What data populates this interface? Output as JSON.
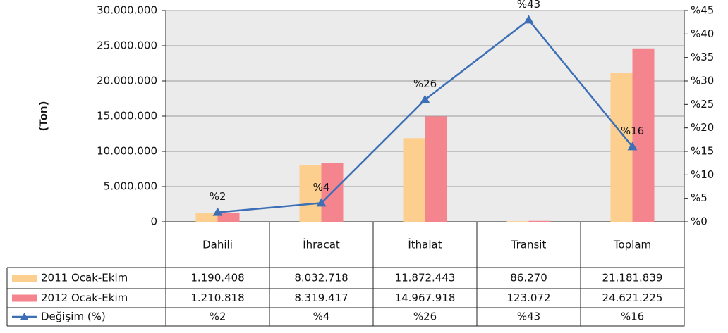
{
  "chart_data": {
    "type": "bar",
    "y_label": "(Ton)",
    "categories": [
      "Dahili",
      "İhracat",
      "İthalat",
      "Transit",
      "Toplam"
    ],
    "series": [
      {
        "name": "2011 Ocak-Ekim",
        "color": "#fccf8e",
        "values": [
          1190408,
          8032718,
          11872443,
          86270,
          21181839
        ],
        "value_labels": [
          "1.190.408",
          "8.032.718",
          "11.872.443",
          "86.270",
          "21.181.839"
        ]
      },
      {
        "name": "2012 Ocak-Ekim",
        "color": "#f4858f",
        "values": [
          1210818,
          8319417,
          14967918,
          123072,
          24621225
        ],
        "value_labels": [
          "1.210.818",
          "8.319.417",
          "14.967.918",
          "123.072",
          "24.621.225"
        ]
      },
      {
        "name": "Değişim (%)",
        "type": "line",
        "axis": "y2",
        "color": "#3d6fb6",
        "values": [
          2,
          4,
          26,
          43,
          16
        ],
        "value_labels": [
          "%2",
          "%4",
          "%26",
          "%43",
          "%16"
        ]
      }
    ],
    "ylim": [
      0,
      30000000
    ],
    "yticks": [
      0,
      {
        "value": 5000000,
        "label": "5.000.000"
      },
      {
        "value": 10000000,
        "label": "10.000.000"
      },
      {
        "value": 15000000,
        "label": "15.000.000"
      },
      {
        "value": 20000000,
        "label": "20.000.000"
      },
      {
        "value": 25000000,
        "label": "25.000.000"
      },
      {
        "value": 30000000,
        "label": "30.000.000"
      }
    ],
    "y2lim": [
      0,
      45
    ],
    "y2ticks": [
      {
        "value": 0,
        "label": "%0"
      },
      {
        "value": 5,
        "label": "%5"
      },
      {
        "value": 10,
        "label": "%10"
      },
      {
        "value": 15,
        "label": "%15"
      },
      {
        "value": 20,
        "label": "%20"
      },
      {
        "value": 25,
        "label": "%25"
      },
      {
        "value": 30,
        "label": "%30"
      },
      {
        "value": 35,
        "label": "%35"
      },
      {
        "value": 40,
        "label": "%40"
      },
      {
        "value": 45,
        "label": "%45"
      }
    ],
    "grid": true
  }
}
